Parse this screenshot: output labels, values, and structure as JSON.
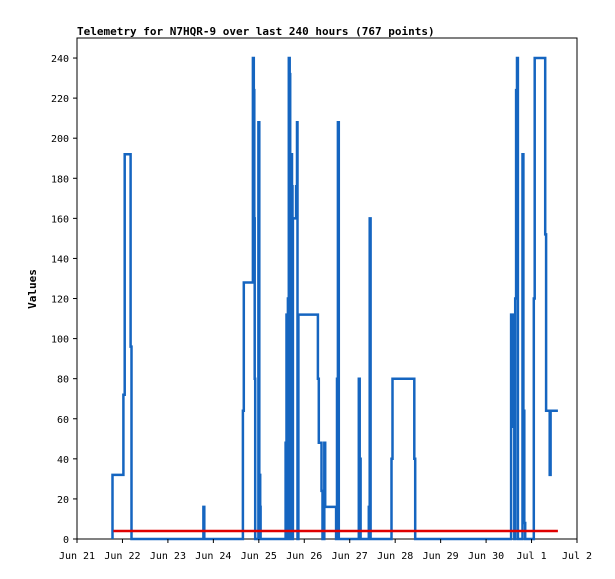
{
  "chart_data": {
    "type": "line",
    "title": "Telemetry for N7HQR-9 over last 240 hours (767 points)",
    "xlabel": "",
    "ylabel": "Values",
    "x_unit": "days since Jun 21 00:00",
    "xlim": [
      0,
      11
    ],
    "ylim": [
      0,
      250
    ],
    "grid": false,
    "x_ticks": [
      {
        "label": "Jun 21",
        "value": 0
      },
      {
        "label": "Jun 22",
        "value": 1
      },
      {
        "label": "Jun 23",
        "value": 2
      },
      {
        "label": "Jun 24",
        "value": 3
      },
      {
        "label": "Jun 25",
        "value": 4
      },
      {
        "label": "Jun 26",
        "value": 5
      },
      {
        "label": "Jun 27",
        "value": 6
      },
      {
        "label": "Jun 28",
        "value": 7
      },
      {
        "label": "Jun 29",
        "value": 8
      },
      {
        "label": "Jun 30",
        "value": 9
      },
      {
        "label": "Jul 1",
        "value": 10
      },
      {
        "label": "Jul 2",
        "value": 11
      }
    ],
    "y_ticks": [
      0,
      20,
      40,
      60,
      80,
      100,
      120,
      140,
      160,
      180,
      200,
      220,
      240
    ],
    "series": [
      {
        "color": "#1565c0",
        "points": [
          [
            0.78,
            0
          ],
          [
            0.78,
            32
          ],
          [
            1.02,
            32
          ],
          [
            1.02,
            72
          ],
          [
            1.05,
            72
          ],
          [
            1.05,
            192
          ],
          [
            1.18,
            192
          ],
          [
            1.18,
            96
          ],
          [
            1.2,
            96
          ],
          [
            1.2,
            0
          ],
          [
            2.78,
            0
          ],
          [
            2.78,
            16
          ],
          [
            2.8,
            16
          ],
          [
            2.8,
            0
          ],
          [
            3.65,
            0
          ],
          [
            3.65,
            64
          ],
          [
            3.67,
            64
          ],
          [
            3.67,
            128
          ],
          [
            3.87,
            128
          ],
          [
            3.87,
            240
          ],
          [
            3.89,
            240
          ],
          [
            3.89,
            224
          ],
          [
            3.9,
            224
          ],
          [
            3.9,
            160
          ],
          [
            3.91,
            160
          ],
          [
            3.91,
            80
          ],
          [
            3.92,
            80
          ],
          [
            3.92,
            0
          ],
          [
            3.99,
            0
          ],
          [
            3.99,
            208
          ],
          [
            4.01,
            208
          ],
          [
            4.01,
            32
          ],
          [
            4.03,
            32
          ],
          [
            4.03,
            16
          ],
          [
            4.04,
            16
          ],
          [
            4.04,
            0
          ],
          [
            4.59,
            0
          ],
          [
            4.59,
            48
          ],
          [
            4.6,
            48
          ],
          [
            4.6,
            0
          ],
          [
            4.61,
            0
          ],
          [
            4.61,
            112
          ],
          [
            4.62,
            112
          ],
          [
            4.62,
            56
          ],
          [
            4.63,
            56
          ],
          [
            4.63,
            0
          ],
          [
            4.64,
            0
          ],
          [
            4.64,
            120
          ],
          [
            4.66,
            120
          ],
          [
            4.66,
            240
          ],
          [
            4.68,
            240
          ],
          [
            4.68,
            232
          ],
          [
            4.69,
            232
          ],
          [
            4.69,
            0
          ],
          [
            4.7,
            0
          ],
          [
            4.7,
            176
          ],
          [
            4.71,
            176
          ],
          [
            4.71,
            80
          ],
          [
            4.72,
            80
          ],
          [
            4.72,
            192
          ],
          [
            4.73,
            192
          ],
          [
            4.73,
            176
          ],
          [
            4.74,
            176
          ],
          [
            4.74,
            0
          ],
          [
            4.75,
            0
          ],
          [
            4.75,
            160
          ],
          [
            4.82,
            160
          ],
          [
            4.82,
            176
          ],
          [
            4.84,
            176
          ],
          [
            4.84,
            208
          ],
          [
            4.85,
            208
          ],
          [
            4.85,
            0
          ],
          [
            4.87,
            0
          ],
          [
            4.87,
            112
          ],
          [
            5.3,
            112
          ],
          [
            5.3,
            80
          ],
          [
            5.32,
            80
          ],
          [
            5.32,
            48
          ],
          [
            5.38,
            48
          ],
          [
            5.38,
            24
          ],
          [
            5.4,
            24
          ],
          [
            5.4,
            0
          ],
          [
            5.44,
            0
          ],
          [
            5.44,
            48
          ],
          [
            5.46,
            48
          ],
          [
            5.46,
            16
          ],
          [
            5.7,
            16
          ],
          [
            5.7,
            0
          ],
          [
            5.72,
            0
          ],
          [
            5.72,
            80
          ],
          [
            5.74,
            80
          ],
          [
            5.74,
            208
          ],
          [
            5.76,
            208
          ],
          [
            5.76,
            0
          ],
          [
            6.2,
            0
          ],
          [
            6.2,
            80
          ],
          [
            6.22,
            80
          ],
          [
            6.22,
            40
          ],
          [
            6.24,
            40
          ],
          [
            6.24,
            0
          ],
          [
            6.42,
            0
          ],
          [
            6.42,
            16
          ],
          [
            6.44,
            16
          ],
          [
            6.44,
            160
          ],
          [
            6.46,
            160
          ],
          [
            6.46,
            0
          ],
          [
            6.92,
            0
          ],
          [
            6.92,
            40
          ],
          [
            6.94,
            40
          ],
          [
            6.94,
            80
          ],
          [
            7.42,
            80
          ],
          [
            7.42,
            40
          ],
          [
            7.44,
            40
          ],
          [
            7.44,
            0
          ],
          [
            9.55,
            0
          ],
          [
            9.55,
            112
          ],
          [
            9.6,
            112
          ],
          [
            9.6,
            56
          ],
          [
            9.62,
            56
          ],
          [
            9.62,
            0
          ],
          [
            9.64,
            0
          ],
          [
            9.64,
            120
          ],
          [
            9.66,
            120
          ],
          [
            9.66,
            224
          ],
          [
            9.68,
            224
          ],
          [
            9.68,
            240
          ],
          [
            9.7,
            240
          ],
          [
            9.7,
            0
          ],
          [
            9.8,
            0
          ],
          [
            9.8,
            192
          ],
          [
            9.82,
            192
          ],
          [
            9.82,
            64
          ],
          [
            9.84,
            64
          ],
          [
            9.84,
            8
          ],
          [
            9.86,
            8
          ],
          [
            9.86,
            0
          ],
          [
            10.05,
            0
          ],
          [
            10.05,
            120
          ],
          [
            10.07,
            120
          ],
          [
            10.07,
            240
          ],
          [
            10.3,
            240
          ],
          [
            10.3,
            152
          ],
          [
            10.32,
            152
          ],
          [
            10.32,
            64
          ],
          [
            10.4,
            64
          ],
          [
            10.4,
            32
          ],
          [
            10.42,
            32
          ],
          [
            10.42,
            64
          ],
          [
            10.58,
            64
          ]
        ]
      },
      {
        "color": "#e00000",
        "points": [
          [
            0.8,
            4
          ],
          [
            10.58,
            4
          ]
        ]
      }
    ]
  }
}
